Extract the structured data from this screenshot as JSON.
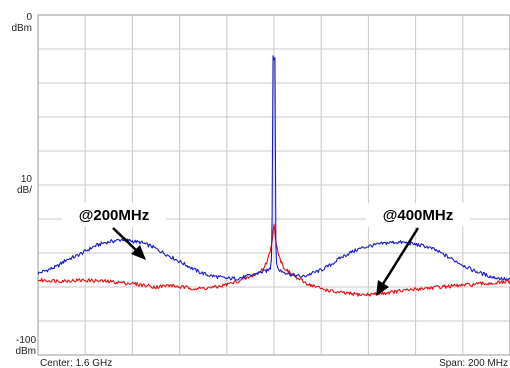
{
  "chart_data": {
    "type": "line",
    "title": "",
    "xlabel": "",
    "ylabel": "",
    "x_unit": "MHz offset from center",
    "xlim": [
      -100,
      100
    ],
    "ylim": [
      -100,
      0
    ],
    "y_ticks": [
      {
        "value": 0,
        "line1": "0",
        "line2": "dBm"
      },
      {
        "value": -50,
        "line1": "10",
        "line2": "dB/"
      },
      {
        "value": -100,
        "line1": "-100",
        "line2": "dBm"
      }
    ],
    "grid": true,
    "footer": {
      "center_label": "Center: 1.6 GHz",
      "span_label": "Span: 200 MHz"
    },
    "annotations": [
      {
        "text": "@200MHz"
      },
      {
        "text": "@400MHz"
      }
    ],
    "series": [
      {
        "color": "#1a1acc",
        "points": [
          [
            -100,
            -76
          ],
          [
            -96,
            -75
          ],
          [
            -92,
            -74
          ],
          [
            -88,
            -72
          ],
          [
            -84,
            -71
          ],
          [
            -80,
            -69.5
          ],
          [
            -76,
            -68
          ],
          [
            -72,
            -67
          ],
          [
            -68,
            -66.5
          ],
          [
            -64,
            -66
          ],
          [
            -60,
            -66.5
          ],
          [
            -56,
            -67
          ],
          [
            -52,
            -68
          ],
          [
            -48,
            -69.5
          ],
          [
            -44,
            -71
          ],
          [
            -40,
            -72.5
          ],
          [
            -36,
            -74
          ],
          [
            -32,
            -75.5
          ],
          [
            -28,
            -76.5
          ],
          [
            -24,
            -77
          ],
          [
            -20,
            -77.5
          ],
          [
            -16,
            -77.5
          ],
          [
            -12,
            -77
          ],
          [
            -8,
            -76.2
          ],
          [
            -5,
            -75.6
          ],
          [
            -3,
            -75.2
          ],
          [
            -1.6,
            -74.5
          ],
          [
            -1.1,
            -72
          ],
          [
            -0.8,
            -60
          ],
          [
            -0.6,
            -35
          ],
          [
            -0.4,
            -12
          ],
          [
            -0.2,
            -13
          ],
          [
            0,
            -13.2
          ],
          [
            0.2,
            -13
          ],
          [
            0.4,
            -12.5
          ],
          [
            0.6,
            -40
          ],
          [
            0.8,
            -68
          ],
          [
            1.1,
            -73
          ],
          [
            1.6,
            -74.6
          ],
          [
            3,
            -75.3
          ],
          [
            5,
            -75.8
          ],
          [
            8,
            -76.5
          ],
          [
            12,
            -77
          ],
          [
            16,
            -76
          ],
          [
            20,
            -75
          ],
          [
            24,
            -73.5
          ],
          [
            28,
            -71.5
          ],
          [
            32,
            -70
          ],
          [
            36,
            -68.8
          ],
          [
            40,
            -68
          ],
          [
            44,
            -67.5
          ],
          [
            48,
            -67
          ],
          [
            52,
            -66.8
          ],
          [
            56,
            -67
          ],
          [
            60,
            -67.5
          ],
          [
            64,
            -68
          ],
          [
            68,
            -69
          ],
          [
            72,
            -70.5
          ],
          [
            76,
            -72
          ],
          [
            80,
            -73.5
          ],
          [
            84,
            -75
          ],
          [
            88,
            -76
          ],
          [
            92,
            -77
          ],
          [
            96,
            -77.5
          ],
          [
            100,
            -78
          ]
        ]
      },
      {
        "color": "#e01010",
        "points": [
          [
            -100,
            -78
          ],
          [
            -90,
            -78.2
          ],
          [
            -80,
            -78
          ],
          [
            -70,
            -78.4
          ],
          [
            -60,
            -79
          ],
          [
            -50,
            -80
          ],
          [
            -44,
            -79.5
          ],
          [
            -40,
            -80
          ],
          [
            -32,
            -80.5
          ],
          [
            -24,
            -80
          ],
          [
            -16,
            -78.5
          ],
          [
            -10,
            -77
          ],
          [
            -6,
            -75.5
          ],
          [
            -4,
            -74
          ],
          [
            -3,
            -72.5
          ],
          [
            -2,
            -70.5
          ],
          [
            -1.5,
            -69
          ],
          [
            -1,
            -67.5
          ],
          [
            -0.6,
            -65.5
          ],
          [
            -0.3,
            -63
          ],
          [
            0,
            -61.5
          ],
          [
            0.3,
            -63
          ],
          [
            0.6,
            -65.5
          ],
          [
            1,
            -67.5
          ],
          [
            1.5,
            -69
          ],
          [
            2,
            -70.5
          ],
          [
            3,
            -72.5
          ],
          [
            4,
            -74
          ],
          [
            6,
            -75.5
          ],
          [
            10,
            -77.5
          ],
          [
            14,
            -79
          ],
          [
            20,
            -80.5
          ],
          [
            26,
            -81.5
          ],
          [
            32,
            -82
          ],
          [
            38,
            -82.3
          ],
          [
            44,
            -82
          ],
          [
            50,
            -81.5
          ],
          [
            56,
            -81
          ],
          [
            62,
            -80.5
          ],
          [
            70,
            -80
          ],
          [
            80,
            -79.5
          ],
          [
            90,
            -79
          ],
          [
            100,
            -78.5
          ]
        ]
      }
    ]
  }
}
